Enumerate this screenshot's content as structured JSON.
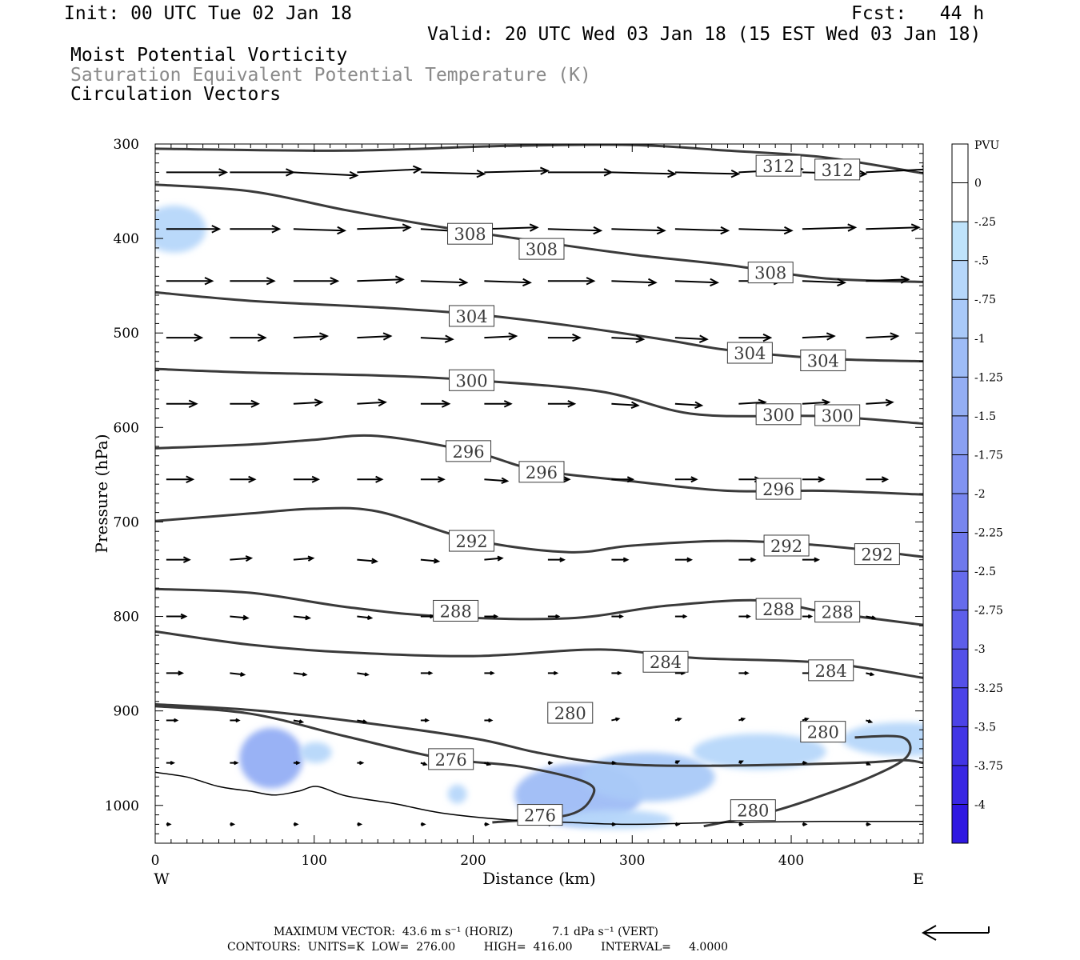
{
  "header": {
    "init": "Init: 00 UTC Tue 02 Jan 18",
    "fcst": "Fcst:   44 h",
    "valid": "Valid: 20 UTC Wed 03 Jan 18 (15 EST Wed 03 Jan 18)",
    "fields": [
      "Moist Potential Vorticity",
      "Saturation Equivalent Potential Temperature (K)",
      "Circulation Vectors"
    ]
  },
  "colors": {
    "contour": "#3a3a3a",
    "terrain": "#000000",
    "vector": "#000000",
    "pv_shades": [
      "#ffffff",
      "#ffffff",
      "#bfe3fb",
      "#b6d7fa",
      "#a9c9f8",
      "#9ebcf6",
      "#94aef4",
      "#8aa0f2",
      "#8193f1",
      "#7886ef",
      "#6f79ed",
      "#666bec",
      "#5d5eea",
      "#5450e8",
      "#4b43e7",
      "#4235e5",
      "#3927e3",
      "#2f18e1"
    ]
  },
  "footer": {
    "max_vector_line": "MAXIMUM VECTOR:  43.6 m s⁻¹ (HORIZ)           7.1 dPa s⁻¹ (VERT)",
    "contours_line": "CONTOURS:  UNITS=K  LOW=  276.00        HIGH=  416.00        INTERVAL=     4.0000"
  },
  "chart_data": {
    "type": "contour",
    "xlabel": "Distance (km)",
    "ylabel": "Pressure (hPa)",
    "xlim": [
      0,
      483
    ],
    "ylim": [
      300,
      1040
    ],
    "x_ticks": [
      0,
      100,
      200,
      300,
      400
    ],
    "y_ticks": [
      300,
      400,
      500,
      600,
      700,
      800,
      900,
      1000
    ],
    "x_end_labels": {
      "left": "W",
      "right": "E"
    },
    "colorbar": {
      "title": "PVU",
      "labels": [
        "0",
        "-.25",
        "-.5",
        "-.75",
        "-1",
        "-1.25",
        "-1.5",
        "-1.75",
        "-2",
        "-2.25",
        "-2.5",
        "-2.75",
        "-3",
        "-3.25",
        "-3.5",
        "-3.75",
        "-4"
      ]
    },
    "theta_es_contours": [
      {
        "level": 312,
        "points": [
          [
            0,
            305
          ],
          [
            120,
            307
          ],
          [
            220,
            302
          ],
          [
            300,
            301
          ],
          [
            360,
            307
          ],
          [
            420,
            314
          ],
          [
            483,
            331
          ]
        ],
        "labels": [
          [
            392,
            323
          ],
          [
            429,
            327
          ]
        ]
      },
      {
        "level": 308,
        "points": [
          [
            0,
            343
          ],
          [
            60,
            350
          ],
          [
            120,
            370
          ],
          [
            180,
            388
          ],
          [
            240,
            403
          ],
          [
            300,
            417
          ],
          [
            360,
            428
          ],
          [
            420,
            442
          ],
          [
            483,
            446
          ]
        ],
        "labels": [
          [
            198,
            395
          ],
          [
            243,
            411
          ],
          [
            387,
            436
          ]
        ]
      },
      {
        "level": 304,
        "points": [
          [
            0,
            457
          ],
          [
            60,
            466
          ],
          [
            140,
            473
          ],
          [
            200,
            480
          ],
          [
            260,
            492
          ],
          [
            320,
            507
          ],
          [
            360,
            518
          ],
          [
            420,
            527
          ],
          [
            483,
            530
          ]
        ],
        "labels": [
          [
            199,
            482
          ],
          [
            374,
            521
          ],
          [
            420,
            529
          ]
        ]
      },
      {
        "level": 300,
        "points": [
          [
            0,
            538
          ],
          [
            60,
            542
          ],
          [
            140,
            545
          ],
          [
            200,
            550
          ],
          [
            280,
            562
          ],
          [
            340,
            586
          ],
          [
            420,
            588
          ],
          [
            483,
            596
          ]
        ],
        "labels": [
          [
            199,
            550
          ],
          [
            392,
            586
          ],
          [
            429,
            587
          ]
        ]
      },
      {
        "level": 296,
        "points": [
          [
            0,
            622
          ],
          [
            60,
            618
          ],
          [
            100,
            613
          ],
          [
            140,
            609
          ],
          [
            200,
            626
          ],
          [
            240,
            645
          ],
          [
            300,
            657
          ],
          [
            360,
            667
          ],
          [
            420,
            667
          ],
          [
            483,
            671
          ]
        ],
        "labels": [
          [
            197,
            625
          ],
          [
            243,
            647
          ],
          [
            392,
            665
          ]
        ]
      },
      {
        "level": 292,
        "points": [
          [
            0,
            699
          ],
          [
            60,
            691
          ],
          [
            100,
            686
          ],
          [
            140,
            689
          ],
          [
            200,
            719
          ],
          [
            260,
            732
          ],
          [
            300,
            725
          ],
          [
            360,
            720
          ],
          [
            420,
            725
          ],
          [
            483,
            737
          ]
        ],
        "labels": [
          [
            199,
            720
          ],
          [
            397,
            725
          ],
          [
            454,
            734
          ]
        ]
      },
      {
        "level": 288,
        "points": [
          [
            0,
            771
          ],
          [
            60,
            775
          ],
          [
            120,
            790
          ],
          [
            180,
            800
          ],
          [
            260,
            802
          ],
          [
            320,
            789
          ],
          [
            380,
            783
          ],
          [
            420,
            795
          ],
          [
            483,
            809
          ]
        ],
        "labels": [
          [
            189,
            794
          ],
          [
            392,
            792
          ],
          [
            429,
            795
          ]
        ]
      },
      {
        "level": 284,
        "points": [
          [
            0,
            816
          ],
          [
            60,
            830
          ],
          [
            120,
            838
          ],
          [
            200,
            842
          ],
          [
            280,
            835
          ],
          [
            340,
            844
          ],
          [
            420,
            849
          ],
          [
            483,
            865
          ]
        ],
        "labels": [
          [
            321,
            848
          ],
          [
            425,
            857
          ]
        ]
      },
      {
        "level": 280,
        "points": [
          [
            0,
            893
          ],
          [
            60,
            899
          ],
          [
            120,
            910
          ],
          [
            200,
            929
          ],
          [
            240,
            944
          ],
          [
            283,
            955
          ],
          [
            340,
            958
          ],
          [
            440,
            955
          ],
          [
            470,
            952
          ],
          [
            483,
            955
          ]
        ],
        "labels": [
          [
            261,
            902
          ]
        ]
      },
      {
        "level": 280,
        "points": [
          [
            345,
            1022
          ],
          [
            380,
            1010
          ],
          [
            410,
            995
          ],
          [
            450,
            970
          ],
          [
            473,
            948
          ],
          [
            470,
            928
          ],
          [
            440,
            928
          ]
        ],
        "labels": [
          [
            420,
            922
          ],
          [
            376,
            1005
          ]
        ]
      },
      {
        "level": 276,
        "points": [
          [
            0,
            895
          ],
          [
            60,
            903
          ],
          [
            120,
            927
          ],
          [
            180,
            950
          ],
          [
            230,
            959
          ],
          [
            270,
            975
          ],
          [
            275,
            990
          ],
          [
            260,
            1010
          ],
          [
            212,
            1018
          ]
        ],
        "labels": [
          [
            186,
            951
          ],
          [
            242,
            1010
          ]
        ]
      }
    ],
    "terrain": {
      "points": [
        [
          0,
          965
        ],
        [
          20,
          970
        ],
        [
          40,
          980
        ],
        [
          60,
          985
        ],
        [
          75,
          989
        ],
        [
          90,
          985
        ],
        [
          102,
          980
        ],
        [
          120,
          990
        ],
        [
          150,
          998
        ],
        [
          180,
          1008
        ],
        [
          220,
          1015
        ],
        [
          260,
          1018
        ],
        [
          300,
          1020
        ],
        [
          360,
          1018
        ],
        [
          420,
          1017
        ],
        [
          483,
          1017
        ]
      ]
    },
    "pv_regions": [
      {
        "level": -0.5,
        "center": [
          12,
          390
        ],
        "radius": [
          20,
          25
        ]
      },
      {
        "level": -1.25,
        "center": [
          73,
          950
        ],
        "radius": [
          20,
          32
        ]
      },
      {
        "level": -0.5,
        "center": [
          101,
          944
        ],
        "radius": [
          10,
          11
        ]
      },
      {
        "level": -0.5,
        "center": [
          190,
          988
        ],
        "radius": [
          6,
          10
        ]
      },
      {
        "level": -1.0,
        "center": [
          266,
          989
        ],
        "radius": [
          40,
          33
        ]
      },
      {
        "level": -0.75,
        "center": [
          310,
          970
        ],
        "radius": [
          42,
          26
        ]
      },
      {
        "level": -0.5,
        "center": [
          380,
          943
        ],
        "radius": [
          42,
          19
        ]
      },
      {
        "level": -0.5,
        "center": [
          470,
          930
        ],
        "radius": [
          38,
          18
        ]
      },
      {
        "level": -0.5,
        "center": [
          290,
          1015
        ],
        "radius": [
          35,
          10
        ]
      }
    ],
    "vectors": {
      "columns_x": [
        10,
        50,
        90,
        130,
        170,
        210,
        250,
        290,
        330,
        370,
        410,
        450
      ],
      "levels_hpa": [
        330,
        390,
        445,
        505,
        575,
        655,
        740,
        800,
        860,
        910,
        955,
        1020
      ],
      "u": [
        [
          34,
          36,
          36,
          36,
          36,
          36,
          36,
          36,
          36,
          36,
          36,
          36
        ],
        [
          30,
          28,
          29,
          30,
          30,
          30,
          30,
          30,
          30,
          30,
          30,
          30
        ],
        [
          26,
          25,
          25,
          26,
          26,
          26,
          26,
          25,
          24,
          24,
          24,
          24
        ],
        [
          20,
          20,
          19,
          19,
          18,
          18,
          18,
          18,
          18,
          18,
          18,
          18
        ],
        [
          17,
          16,
          16,
          16,
          16,
          15,
          15,
          15,
          15,
          15,
          15,
          15
        ],
        [
          15,
          14,
          14,
          14,
          13,
          13,
          12,
          12,
          12,
          12,
          12,
          12
        ],
        [
          13,
          12,
          11,
          11,
          10,
          10,
          9,
          9,
          9,
          9,
          9,
          9
        ],
        [
          11,
          10,
          9,
          8,
          7,
          7,
          6,
          6,
          6,
          6,
          5,
          5
        ],
        [
          9,
          8,
          7,
          6,
          6,
          5,
          5,
          5,
          5,
          5,
          5,
          4
        ],
        [
          6,
          5,
          5,
          5,
          4,
          4,
          4,
          4,
          3,
          3,
          3,
          3
        ],
        [
          4,
          4,
          3,
          3,
          3,
          3,
          2,
          2,
          2,
          2,
          2,
          2
        ],
        [
          2,
          2,
          2,
          2,
          2,
          2,
          2,
          2,
          2,
          2,
          2,
          2
        ]
      ],
      "w": [
        [
          0,
          0,
          2,
          -2,
          1,
          -1,
          0,
          1,
          1,
          -2,
          1,
          -2
        ],
        [
          0,
          0,
          1,
          -1,
          2,
          -1,
          1,
          1,
          1,
          1,
          -1,
          -1
        ],
        [
          0,
          0,
          0,
          -1,
          1,
          1,
          0,
          1,
          1,
          0,
          1,
          -1
        ],
        [
          0,
          0,
          -1,
          -1,
          1,
          -1,
          0,
          1,
          1,
          0,
          -1,
          -1
        ],
        [
          0,
          0,
          -1,
          -1,
          0,
          0,
          0,
          1,
          1,
          -1,
          -1,
          -1
        ],
        [
          0,
          0,
          0,
          0,
          0,
          1,
          0,
          0,
          0,
          0,
          0,
          0
        ],
        [
          0,
          -1,
          -1,
          1,
          1,
          -1,
          0,
          0,
          0,
          0,
          0,
          1
        ],
        [
          0,
          1,
          1,
          1,
          0,
          0,
          0,
          0,
          0,
          0,
          0,
          1
        ],
        [
          0,
          1,
          1,
          1,
          0,
          0,
          0,
          0,
          0,
          0,
          0,
          1
        ],
        [
          0,
          0,
          1,
          1,
          0,
          0,
          0,
          -1,
          -1,
          -1,
          -1,
          1
        ],
        [
          0,
          0,
          0,
          0,
          1,
          1,
          0,
          0,
          -1,
          -1,
          0,
          1
        ],
        [
          0,
          0,
          0,
          0,
          0,
          0,
          0,
          0,
          0,
          0,
          0,
          0
        ]
      ],
      "reference_arrow": {
        "u": -43.6,
        "w": 0
      }
    }
  }
}
